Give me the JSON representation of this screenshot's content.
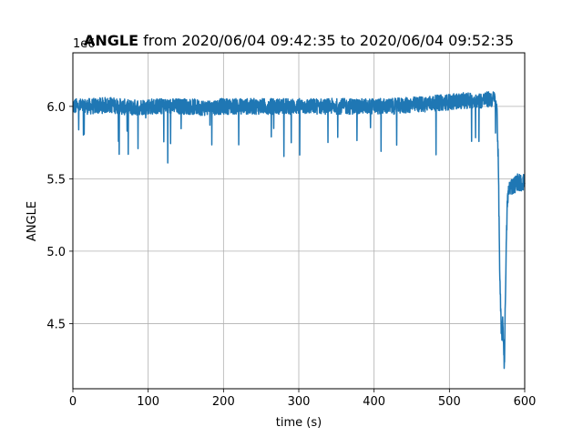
{
  "chart_data": {
    "type": "line",
    "title_bold": "ANGLE",
    "title_rest": " from 2020/06/04 09:42:35 to 2020/06/04 09:52:35",
    "xlabel": "time (s)",
    "ylabel": "ANGLE",
    "y_offset_label": "1e6",
    "xlim": [
      0,
      600
    ],
    "ylim": [
      4.05,
      6.37
    ],
    "x_ticks": [
      0,
      100,
      200,
      300,
      400,
      500,
      600
    ],
    "x_tick_labels": [
      "0",
      "100",
      "200",
      "300",
      "400",
      "500",
      "600"
    ],
    "y_ticks": [
      4.5,
      5.0,
      5.5,
      6.0
    ],
    "y_tick_labels": [
      "4.5",
      "5.0",
      "5.5",
      "6.0"
    ],
    "grid": true,
    "series": [
      {
        "color": "#1f77b4",
        "x": [
          0,
          25,
          50,
          75,
          100,
          125,
          150,
          175,
          200,
          225,
          250,
          275,
          300,
          325,
          350,
          375,
          400,
          425,
          450,
          475,
          500,
          520,
          540,
          555,
          560,
          563,
          565,
          567,
          569,
          571,
          573,
          575,
          577,
          580,
          585,
          590,
          595,
          600
        ],
        "values": [
          6.0,
          6.0,
          6.01,
          5.99,
          6.0,
          6.0,
          6.0,
          5.99,
          6.0,
          6.0,
          6.0,
          6.0,
          6.0,
          6.0,
          6.0,
          6.0,
          6.0,
          6.0,
          6.01,
          6.02,
          6.03,
          6.04,
          6.04,
          6.05,
          6.05,
          6.0,
          5.6,
          4.8,
          4.4,
          4.5,
          4.2,
          4.9,
          5.35,
          5.45,
          5.45,
          5.48,
          5.47,
          5.48
        ]
      }
    ]
  }
}
